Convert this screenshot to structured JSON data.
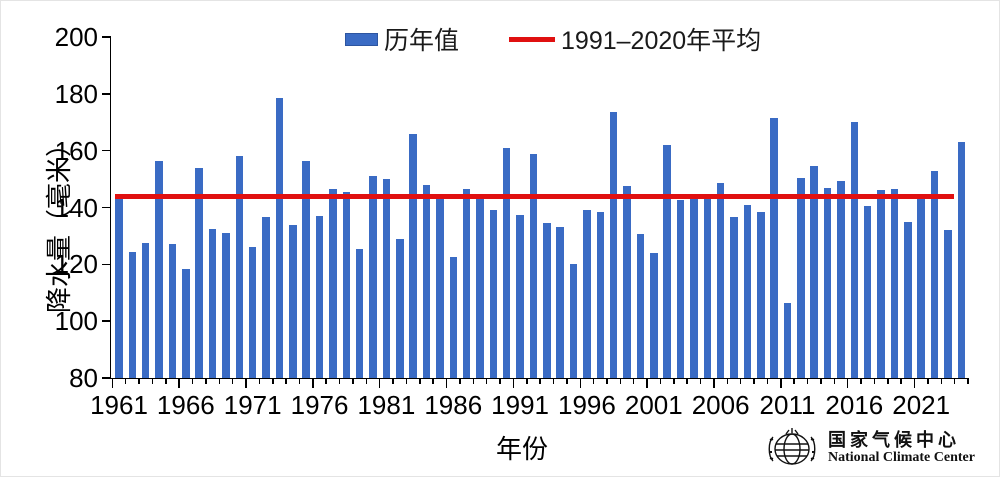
{
  "chart": {
    "legend_items": [
      {
        "label": "历年值",
        "swatch": "bar",
        "color": "#3a6bc4"
      },
      {
        "label": "1991–2020年平均",
        "swatch": "line",
        "color": "#e01010"
      }
    ]
  },
  "chart_data": {
    "type": "bar",
    "title": "",
    "xlabel": "年份",
    "ylabel": "降水量（毫米）",
    "ylim": [
      80,
      200
    ],
    "y_ticks": [
      200,
      180,
      160,
      140,
      120,
      100,
      80
    ],
    "x_tick_labels": [
      "1961",
      "1966",
      "1971",
      "1976",
      "1981",
      "1986",
      "1991",
      "1996",
      "2001",
      "2006",
      "2011",
      "2016",
      "2021"
    ],
    "series_name": "历年值",
    "x": [
      1961,
      1962,
      1963,
      1964,
      1965,
      1966,
      1967,
      1968,
      1969,
      1970,
      1971,
      1972,
      1973,
      1974,
      1975,
      1976,
      1977,
      1978,
      1979,
      1980,
      1981,
      1982,
      1983,
      1984,
      1985,
      1986,
      1987,
      1988,
      1989,
      1990,
      1991,
      1992,
      1993,
      1994,
      1995,
      1996,
      1997,
      1998,
      1999,
      2000,
      2001,
      2002,
      2003,
      2004,
      2005,
      2006,
      2007,
      2008,
      2009,
      2010,
      2011,
      2012,
      2013,
      2014,
      2015,
      2016,
      2017,
      2018,
      2019,
      2020,
      2021,
      2022,
      2023,
      2024
    ],
    "values": [
      144,
      124.5,
      127.5,
      156.5,
      127,
      118.5,
      154,
      132.5,
      131,
      158,
      126,
      136.5,
      178.5,
      134,
      156.5,
      137,
      146.5,
      145.5,
      125.5,
      151,
      150,
      129,
      166,
      148,
      143,
      122.5,
      146.5,
      143,
      139,
      161,
      137.5,
      159,
      134.5,
      133,
      120,
      139,
      138.5,
      173.5,
      147.5,
      130.5,
      124,
      162,
      142.5,
      144.5,
      143.5,
      148.5,
      136.5,
      141,
      138.5,
      171.5,
      106.5,
      150.5,
      154.5,
      147,
      149.5,
      170,
      140.5,
      146,
      146.5,
      135,
      144.5,
      153,
      132,
      163
    ],
    "reference_line": {
      "label": "1991–2020年平均",
      "value": 144
    },
    "grid": false,
    "legend_position": "top-center",
    "bar_color": "#3a6bc4",
    "reference_color": "#e01010"
  },
  "logo": {
    "name_cn": "国家气候中心",
    "name_en": "National Climate Center"
  }
}
